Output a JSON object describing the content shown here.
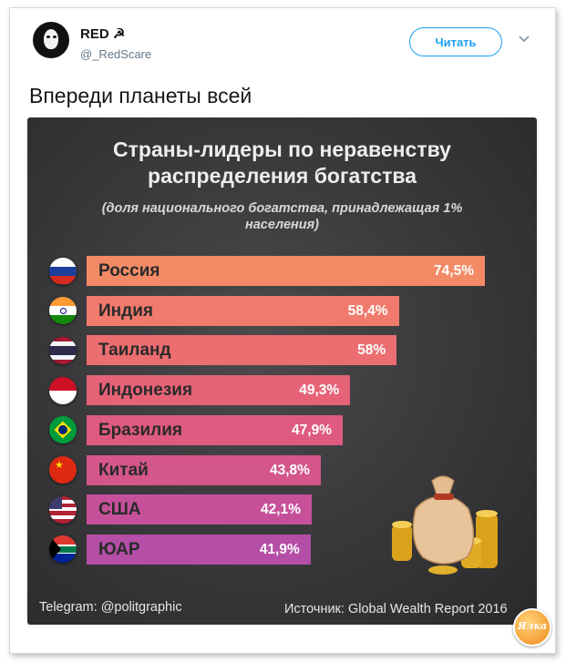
{
  "tweet": {
    "user_name": "RED ☭",
    "handle": "@_RedScare",
    "follow_label": "Читать",
    "text": "Впереди планеты всей"
  },
  "infographic": {
    "title_line1": "Страны-лидеры по неравенству",
    "title_line2": "распределения богатства",
    "subtitle_line1": "(доля национального богатства, принадлежащая 1%",
    "subtitle_line2": "населения)",
    "footer_left": "Telegram: @politgraphic",
    "footer_right": "Источник: Global Wealth Report 2016",
    "watermark_text": "Ялка"
  },
  "chart_data": {
    "type": "bar",
    "orientation": "horizontal",
    "categories": [
      "Россия",
      "Индия",
      "Таиланд",
      "Индонезия",
      "Бразилия",
      "Китай",
      "США",
      "ЮАР"
    ],
    "values": [
      74.5,
      58.4,
      58,
      49.3,
      47.9,
      43.8,
      42.1,
      41.9
    ],
    "value_labels": [
      "74,5%",
      "58,4%",
      "58%",
      "49,3%",
      "47,9%",
      "43,8%",
      "42,1%",
      "41,9%"
    ],
    "colors": [
      "#f38a66",
      "#f07a6b",
      "#ec6e70",
      "#e66377",
      "#df5a80",
      "#d4568b",
      "#c6519a",
      "#b44ea6"
    ],
    "flags": [
      "russia-flag-icon",
      "india-flag-icon",
      "thailand-flag-icon",
      "indonesia-flag-icon",
      "brazil-flag-icon",
      "china-flag-icon",
      "usa-flag-icon",
      "south-africa-flag-icon"
    ]
  }
}
